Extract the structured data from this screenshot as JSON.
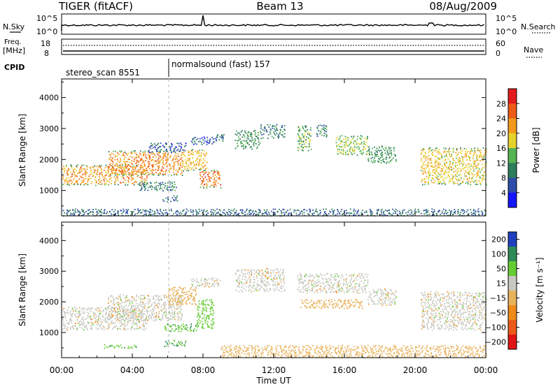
{
  "header": {
    "radar": "TIGER (fitACF)",
    "beam": "Beam 13",
    "date": "08/Aug/2009"
  },
  "sky_panel": {
    "left_label": "N.Sky",
    "right_label": "N.Search",
    "tick_top": "10^5",
    "tick_bottom": "10^0"
  },
  "freq_panel": {
    "left_label_line1": "Freq.",
    "left_label_line2": "[MHz]",
    "left_tick_top": "18",
    "left_tick_bottom": "8",
    "right_tick_top": "60",
    "right_tick_bottom": "0",
    "right_label": "Nave"
  },
  "cpid": {
    "label": "CPID",
    "modes": [
      {
        "name": "stereo_scan 8551",
        "start_hour": 0,
        "end_hour": 6
      },
      {
        "name": "normalsound (fast) 157",
        "start_hour": 6,
        "end_hour": 24
      }
    ]
  },
  "chart_data": [
    {
      "type": "heatmap",
      "title": "",
      "xlabel": "Time UT",
      "ylabel": "Slant Range [km]",
      "x_ticks": [
        "00:00",
        "04:00",
        "08:00",
        "12:00",
        "16:00",
        "20:00",
        "00:00"
      ],
      "x_tick_hours": [
        0,
        4,
        8,
        12,
        16,
        20,
        24
      ],
      "xlim": [
        0,
        24
      ],
      "ylim": [
        180,
        4600
      ],
      "y_ticks": [
        1000,
        2000,
        3000,
        4000
      ],
      "colorbar": {
        "label": "Power [dB]",
        "ticks": [
          4,
          8,
          12,
          16,
          20,
          24,
          28
        ],
        "range": [
          0,
          32
        ],
        "colors": [
          "#1414ff",
          "#2d4da8",
          "#2e7d5b",
          "#55b352",
          "#e6d22c",
          "#f39a1c",
          "#ee5a18",
          "#e31a1c"
        ]
      },
      "regions": [
        {
          "t0": 0.0,
          "t1": 4.8,
          "r0": 1180,
          "r1": 1850,
          "val": 22
        },
        {
          "t0": 2.6,
          "t1": 6.8,
          "r0": 1500,
          "r1": 2300,
          "val": 23
        },
        {
          "t0": 6.8,
          "t1": 8.2,
          "r0": 1650,
          "r1": 2350,
          "val": 20
        },
        {
          "t0": 7.8,
          "t1": 9.0,
          "r0": 1100,
          "r1": 1700,
          "val": 25
        },
        {
          "t0": 4.3,
          "t1": 6.5,
          "r0": 1000,
          "r1": 1300,
          "val": 10
        },
        {
          "t0": 5.7,
          "t1": 6.6,
          "r0": 650,
          "r1": 850,
          "val": 8
        },
        {
          "t0": 4.9,
          "t1": 7.0,
          "r0": 2250,
          "r1": 2550,
          "val": 7
        },
        {
          "t0": 7.3,
          "t1": 8.6,
          "r0": 2500,
          "r1": 2750,
          "val": 6
        },
        {
          "t0": 8.6,
          "t1": 9.2,
          "r0": 2600,
          "r1": 2850,
          "val": 9
        },
        {
          "t0": 9.8,
          "t1": 11.2,
          "r0": 2350,
          "r1": 2950,
          "val": 12
        },
        {
          "t0": 11.2,
          "t1": 12.6,
          "r0": 2700,
          "r1": 3150,
          "val": 10
        },
        {
          "t0": 13.3,
          "t1": 14.1,
          "r0": 2300,
          "r1": 3100,
          "val": 14
        },
        {
          "t0": 14.4,
          "t1": 15.0,
          "r0": 2750,
          "r1": 3150,
          "val": 9
        },
        {
          "t0": 15.5,
          "t1": 17.3,
          "r0": 2150,
          "r1": 2800,
          "val": 16
        },
        {
          "t0": 17.3,
          "t1": 18.9,
          "r0": 1900,
          "r1": 2450,
          "val": 12
        },
        {
          "t0": 20.3,
          "t1": 24.0,
          "r0": 1200,
          "r1": 2400,
          "val": 19
        },
        {
          "t0": 0.0,
          "t1": 24.0,
          "r0": 200,
          "r1": 420,
          "val": 8
        }
      ]
    },
    {
      "type": "heatmap",
      "title": "",
      "xlabel": "Time UT",
      "ylabel": "Slant Range [km]",
      "x_ticks": [
        "00:00",
        "04:00",
        "08:00",
        "12:00",
        "16:00",
        "20:00",
        "00:00"
      ],
      "x_tick_hours": [
        0,
        4,
        8,
        12,
        16,
        20,
        24
      ],
      "xlim": [
        0,
        24
      ],
      "ylim": [
        180,
        4600
      ],
      "y_ticks": [
        1000,
        2000,
        3000,
        4000
      ],
      "colorbar": {
        "label": "Velocity [m s⁻¹]",
        "ticks": [
          "200",
          "100",
          "50",
          "15",
          "−15",
          "−50",
          "−100",
          "−200"
        ],
        "colors": [
          "#1f3fbf",
          "#2e8b57",
          "#66cc33",
          "#c8c8c0",
          "#e8b25a",
          "#f08a18",
          "#ec5a1a",
          "#e01414"
        ]
      },
      "regions": [
        {
          "t0": 0.0,
          "t1": 4.8,
          "r0": 1100,
          "r1": 1850,
          "val": "ground"
        },
        {
          "t0": 2.6,
          "t1": 6.8,
          "r0": 1400,
          "r1": 2250,
          "val": "ground"
        },
        {
          "t0": 6.0,
          "t1": 7.6,
          "r0": 1900,
          "r1": 2500,
          "val": "-30"
        },
        {
          "t0": 7.6,
          "t1": 8.6,
          "r0": 1150,
          "r1": 2100,
          "val": "30"
        },
        {
          "t0": 5.8,
          "t1": 7.6,
          "r0": 1050,
          "r1": 1300,
          "val": "40"
        },
        {
          "t0": 2.4,
          "t1": 4.3,
          "r0": 500,
          "r1": 620,
          "val": "40"
        },
        {
          "t0": 5.7,
          "t1": 7.0,
          "r0": 560,
          "r1": 760,
          "val": "40"
        },
        {
          "t0": 7.3,
          "t1": 9.0,
          "r0": 2500,
          "r1": 2800,
          "val": "ground"
        },
        {
          "t0": 9.8,
          "t1": 12.6,
          "r0": 2350,
          "r1": 3100,
          "val": "ground"
        },
        {
          "t0": 13.3,
          "t1": 17.3,
          "r0": 2300,
          "r1": 2950,
          "val": "ground"
        },
        {
          "t0": 13.5,
          "t1": 17.0,
          "r0": 1800,
          "r1": 2100,
          "val": "-30"
        },
        {
          "t0": 17.3,
          "t1": 18.9,
          "r0": 1900,
          "r1": 2450,
          "val": "ground"
        },
        {
          "t0": 20.3,
          "t1": 24.0,
          "r0": 1100,
          "r1": 2350,
          "val": "ground"
        },
        {
          "t0": 9.0,
          "t1": 24.0,
          "r0": 200,
          "r1": 600,
          "val": "-30"
        }
      ]
    }
  ]
}
